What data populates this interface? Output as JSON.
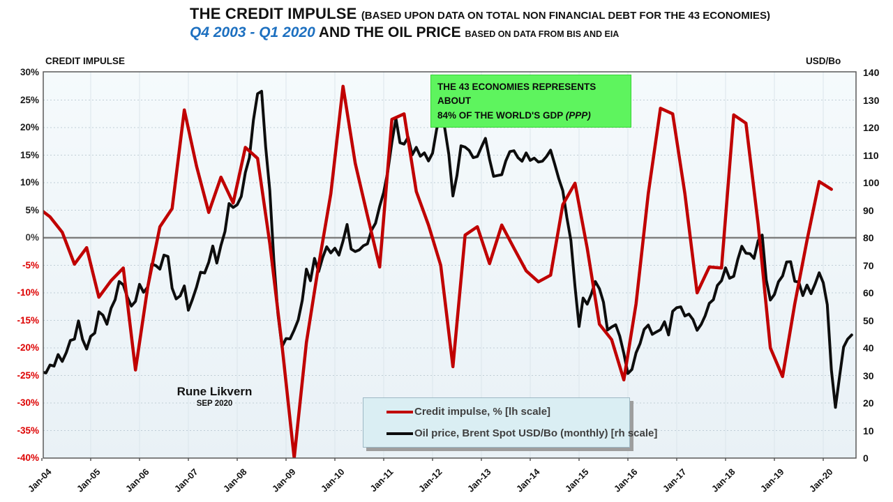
{
  "title": {
    "line1_main": "THE CREDIT IMPULSE ",
    "line1_paren": "(BASED UPON DATA ON TOTAL NON FINANCIAL DEBT FOR THE 43 ECONOMIES)",
    "line2_range": "Q4 2003 - Q1 2020",
    "line2_main": " AND THE OIL PRICE ",
    "line2_src": "BASED ON DATA FROM BIS AND EIA",
    "range_color": "#1d70c0"
  },
  "annotation": {
    "line1": "THE 43 ECONOMIES REPRESENTS ABOUT",
    "line2_main": "84% OF THE WORLD'S GDP ",
    "line2_italic": "(PPP)",
    "bg_color": "#5ef45e"
  },
  "signature": {
    "name": "Rune Likvern",
    "date": "SEP 2020"
  },
  "legend": {
    "items": [
      {
        "label": "Credit impulse, % [lh scale]",
        "color": "#c00000",
        "thickness": 4
      },
      {
        "label": "Oil price, Brent Spot USD/Bo (monthly) [rh scale]",
        "color": "#0d0d0d",
        "thickness": 4
      }
    ]
  },
  "chart_data": {
    "type": "line",
    "title": "The credit impulse (43 economies) and the oil price, Q4 2003 - Q1 2020",
    "left_axis": {
      "label": "CREDIT IMPULSE",
      "min": -40,
      "max": 30,
      "step": 5,
      "tick_labels": [
        "30%",
        "25%",
        "20%",
        "15%",
        "10%",
        "5%",
        "0%",
        "-5%",
        "-10%",
        "-15%",
        "-20%",
        "-25%",
        "-30%",
        "-35%",
        "-40%"
      ],
      "positive_color": "#1a1a1a",
      "zero_color": "#3a3a3a",
      "negative_color": "#dd0000"
    },
    "right_axis": {
      "label": "USD/Bo",
      "min": 0,
      "max": 140,
      "step": 10,
      "tick_labels": [
        "140",
        "130",
        "120",
        "110",
        "100",
        "90",
        "80",
        "70",
        "60",
        "50",
        "40",
        "30",
        "20",
        "10",
        "0"
      ]
    },
    "x_axis": {
      "tick_labels": [
        "Jan-04",
        "Jan-05",
        "Jan-06",
        "Jan-07",
        "Jan-08",
        "Jan-09",
        "Jan-10",
        "Jan-11",
        "Jan-12",
        "Jan-13",
        "Jan-14",
        "Jan-15",
        "Jan-16",
        "Jan-17",
        "Jan-18",
        "Jan-19",
        "Jan-20"
      ]
    },
    "grid": {
      "horizontal": "dotted",
      "vertical": "solid",
      "zero_line": true
    },
    "legend_position": "bottom-center",
    "series": [
      {
        "name": "Credit impulse, % [lh scale]",
        "axis": "left",
        "color": "#c00000",
        "frequency": "quarterly",
        "start": "2003-Q4",
        "end": "2020-Q1",
        "x_start_month": -1,
        "x_step_months": 3,
        "values": [
          5.5,
          3.8,
          1.0,
          -4.8,
          -1.8,
          -10.8,
          -7.8,
          -5.5,
          -24.0,
          -9.0,
          2.0,
          5.3,
          23.2,
          13.0,
          4.6,
          11.0,
          6.3,
          16.4,
          14.4,
          -1.0,
          -19.5,
          -40.0,
          -19.0,
          -5.0,
          8.0,
          27.5,
          13.5,
          4.0,
          -5.3,
          21.5,
          22.5,
          8.4,
          2.3,
          -5.0,
          -23.4,
          0.5,
          2.0,
          -4.7,
          2.3,
          -1.9,
          -6.0,
          -8.0,
          -6.8,
          6.0,
          9.9,
          -1.9,
          -15.7,
          -18.5,
          -25.8,
          -12.0,
          8.0,
          23.5,
          22.5,
          8.0,
          -10.0,
          -5.3,
          -5.5,
          22.3,
          20.8,
          2.5,
          -20.0,
          -25.2,
          -12.0,
          -0.5,
          10.2,
          8.8
        ]
      },
      {
        "name": "Oil price, Brent Spot USD/Bo (monthly) [rh scale]",
        "axis": "right",
        "color": "#0d0d0d",
        "frequency": "monthly",
        "start": "2003-10",
        "end": "2020-08",
        "x_start_month": -3,
        "x_step_months": 1,
        "values": [
          29.6,
          28.8,
          29.9,
          31.3,
          30.9,
          33.8,
          33.4,
          37.6,
          35.1,
          38.3,
          42.7,
          43.2,
          49.8,
          43.1,
          39.6,
          44.2,
          45.4,
          53.1,
          51.9,
          48.6,
          54.4,
          57.5,
          64.1,
          62.9,
          58.5,
          55.2,
          56.9,
          63.1,
          60.2,
          62.1,
          70.4,
          69.9,
          68.6,
          73.7,
          73.2,
          61.7,
          57.8,
          58.9,
          62.5,
          53.7,
          57.6,
          62.1,
          67.5,
          67.2,
          71.1,
          77.0,
          70.8,
          77.2,
          82.3,
          92.4,
          91.0,
          92.0,
          95.0,
          103.7,
          109.1,
          122.8,
          132.3,
          133.2,
          113.0,
          97.2,
          71.9,
          52.5,
          40.4,
          43.4,
          43.3,
          46.5,
          50.2,
          57.3,
          68.6,
          64.4,
          72.5,
          67.7,
          72.8,
          76.7,
          74.5,
          76.2,
          73.7,
          78.8,
          84.8,
          75.9,
          75.0,
          75.6,
          77.1,
          77.8,
          82.7,
          85.3,
          91.4,
          96.5,
          104.0,
          114.6,
          123.3,
          114.5,
          114.0,
          116.5,
          110.1,
          112.8,
          109.6,
          110.8,
          107.9,
          110.7,
          119.3,
          125.4,
          119.8,
          110.3,
          95.2,
          102.6,
          113.4,
          112.9,
          111.7,
          109.1,
          109.5,
          112.9,
          116.1,
          108.5,
          102.3,
          102.6,
          102.9,
          107.9,
          111.3,
          111.6,
          109.1,
          107.8,
          110.8,
          108.1,
          108.9,
          107.5,
          107.8,
          109.5,
          111.8,
          106.8,
          101.6,
          97.1,
          87.4,
          79.0,
          62.3,
          47.8,
          58.1,
          55.9,
          59.5,
          64.1,
          61.5,
          56.6,
          46.5,
          47.6,
          48.4,
          44.3,
          38.0,
          30.7,
          32.2,
          38.2,
          41.6,
          46.7,
          48.3,
          44.9,
          45.8,
          46.6,
          49.5,
          44.7,
          53.3,
          54.6,
          54.9,
          51.6,
          52.3,
          50.3,
          46.4,
          48.5,
          51.7,
          56.2,
          57.5,
          62.7,
          64.4,
          69.1,
          65.3,
          66.0,
          72.1,
          76.9,
          74.4,
          74.2,
          72.5,
          78.9,
          81.0,
          64.7,
          57.4,
          59.4,
          64.0,
          66.1,
          71.2,
          71.3,
          64.2,
          63.9,
          59.0,
          62.8,
          59.7,
          63.2,
          67.3,
          63.7,
          55.7,
          32.0,
          18.4,
          29.4,
          40.3,
          43.2,
          44.7
        ]
      }
    ]
  }
}
